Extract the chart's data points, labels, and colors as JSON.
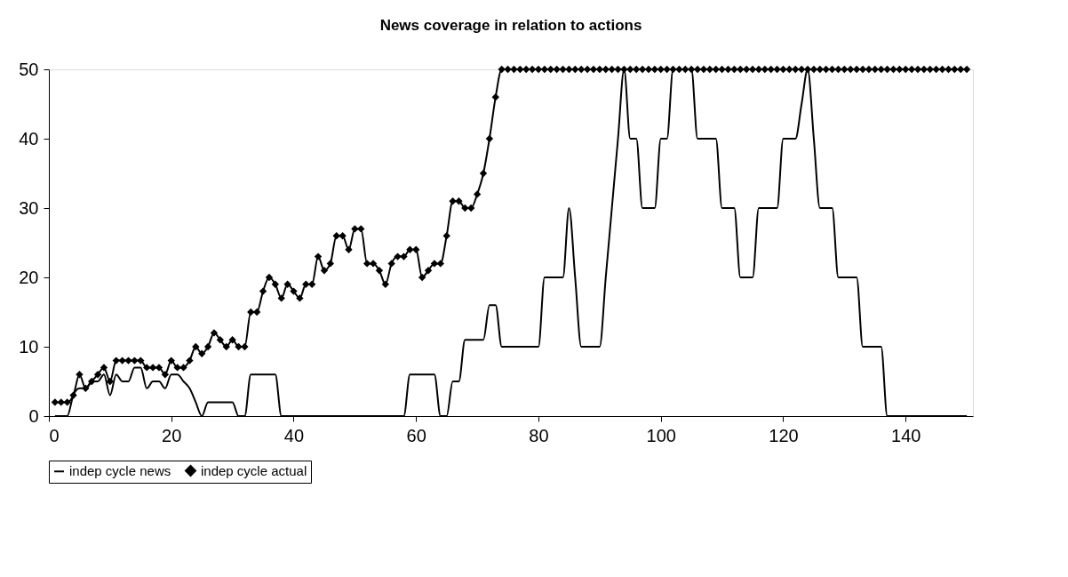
{
  "chart_data": {
    "type": "line",
    "title": "News coverage in relation to actions",
    "x": [
      1,
      2,
      3,
      4,
      5,
      6,
      7,
      8,
      9,
      10,
      11,
      12,
      13,
      14,
      15,
      16,
      17,
      18,
      19,
      20,
      21,
      22,
      23,
      24,
      25,
      26,
      27,
      28,
      29,
      30,
      31,
      32,
      33,
      34,
      35,
      36,
      37,
      38,
      39,
      40,
      41,
      42,
      43,
      44,
      45,
      46,
      47,
      48,
      49,
      50,
      51,
      52,
      53,
      54,
      55,
      56,
      57,
      58,
      59,
      60,
      61,
      62,
      63,
      64,
      65,
      66,
      67,
      68,
      69,
      70,
      71,
      72,
      73,
      74,
      75,
      76,
      77,
      78,
      79,
      80,
      81,
      82,
      83,
      84,
      85,
      86,
      87,
      88,
      89,
      90,
      91,
      92,
      93,
      94,
      95,
      96,
      97,
      98,
      99,
      100,
      101,
      102,
      103,
      104,
      105,
      106,
      107,
      108,
      109,
      110,
      111,
      112,
      113,
      114,
      115,
      116,
      117,
      118,
      119,
      120,
      121,
      122,
      123,
      124,
      125,
      126,
      127,
      128,
      129,
      130,
      131,
      132,
      133,
      134,
      135,
      136,
      137,
      138,
      139,
      140,
      141,
      142,
      143,
      144,
      145,
      146,
      147,
      148,
      149,
      150
    ],
    "series": [
      {
        "name": "indep cycle news",
        "color": "#000000",
        "marker": "none",
        "values": [
          0,
          0,
          0,
          3,
          4,
          4,
          5,
          5,
          6,
          3,
          6,
          5,
          5,
          7,
          7,
          4,
          5,
          5,
          4,
          6,
          6,
          5,
          4,
          2,
          0,
          2,
          2,
          2,
          2,
          2,
          0,
          0,
          6,
          6,
          6,
          6,
          6,
          0,
          0,
          0,
          0,
          0,
          0,
          0,
          0,
          0,
          0,
          0,
          0,
          0,
          0,
          0,
          0,
          0,
          0,
          0,
          0,
          0,
          6,
          6,
          6,
          6,
          6,
          0,
          0,
          5,
          5,
          11,
          11,
          11,
          11,
          16,
          16,
          10,
          10,
          10,
          10,
          10,
          10,
          10,
          20,
          20,
          20,
          20,
          30,
          20,
          10,
          10,
          10,
          10,
          20,
          30,
          40,
          50,
          40,
          40,
          30,
          30,
          30,
          40,
          40,
          50,
          50,
          50,
          50,
          40,
          40,
          40,
          40,
          30,
          30,
          30,
          20,
          20,
          20,
          30,
          30,
          30,
          30,
          40,
          40,
          40,
          45,
          50,
          40,
          30,
          30,
          30,
          20,
          20,
          20,
          20,
          10,
          10,
          10,
          10,
          0,
          0,
          0,
          0,
          0,
          0,
          0,
          0,
          0,
          0,
          0,
          0,
          0,
          0
        ]
      },
      {
        "name": "indep cycle actual",
        "color": "#000000",
        "marker": "diamond",
        "values": [
          2,
          2,
          2,
          3,
          6,
          4,
          5,
          6,
          7,
          5,
          8,
          8,
          8,
          8,
          8,
          7,
          7,
          7,
          6,
          8,
          7,
          7,
          8,
          10,
          9,
          10,
          12,
          11,
          10,
          11,
          10,
          10,
          15,
          15,
          18,
          20,
          19,
          17,
          19,
          18,
          17,
          19,
          19,
          23,
          21,
          22,
          26,
          26,
          24,
          27,
          27,
          22,
          22,
          21,
          19,
          22,
          23,
          23,
          24,
          24,
          20,
          21,
          22,
          22,
          26,
          31,
          31,
          30,
          30,
          32,
          35,
          40,
          46,
          50,
          50,
          50,
          50,
          50,
          50,
          50,
          50,
          50,
          50,
          50,
          50,
          50,
          50,
          50,
          50,
          50,
          50,
          50,
          50,
          50,
          50,
          50,
          50,
          50,
          50,
          50,
          50,
          50,
          50,
          50,
          50,
          50,
          50,
          50,
          50,
          50,
          50,
          50,
          50,
          50,
          50,
          50,
          50,
          50,
          50,
          50,
          50,
          50,
          50,
          50,
          50,
          50,
          50,
          50,
          50,
          50,
          50,
          50,
          50,
          50,
          50,
          50,
          50,
          50,
          50,
          50,
          50,
          50,
          50,
          50,
          50,
          50,
          50,
          50,
          50,
          50
        ]
      }
    ],
    "xlim": [
      0,
      151
    ],
    "xticks": [
      0,
      20,
      40,
      60,
      80,
      100,
      120,
      140
    ],
    "ylim": [
      0,
      50
    ],
    "yticks": [
      0,
      10,
      20,
      30,
      40,
      50
    ],
    "grid": false,
    "legend": "bottom",
    "line_style": "solid"
  }
}
